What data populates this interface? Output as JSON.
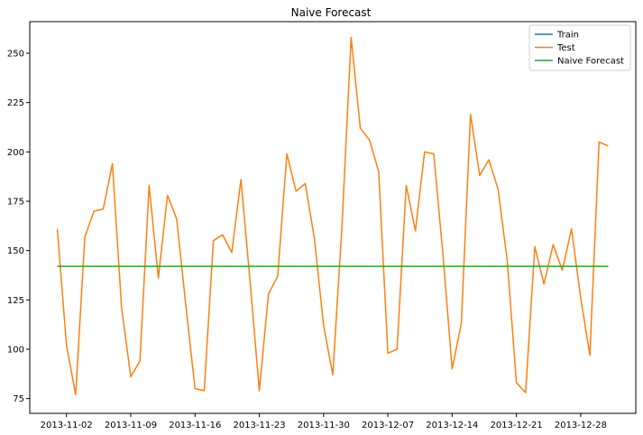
{
  "chart_data": {
    "type": "line",
    "title": "Naive Forecast",
    "xlabel": "",
    "ylabel": "",
    "x_tick_labels": [
      "2013-11-02",
      "2013-11-09",
      "2013-11-16",
      "2013-11-23",
      "2013-11-30",
      "2013-12-07",
      "2013-12-14",
      "2013-12-21",
      "2013-12-28"
    ],
    "y_ticks": [
      75,
      100,
      125,
      150,
      175,
      200,
      225,
      250
    ],
    "xlim": [
      "2013-10-29",
      "2014-01-03"
    ],
    "ylim": [
      67.5,
      266
    ],
    "grid": false,
    "legend_position": "top-right",
    "legend": [
      "Train",
      "Test",
      "Naive Forecast"
    ],
    "x_start": "2013-11-01",
    "series": [
      {
        "name": "Train",
        "color": "#1f77b4",
        "values": []
      },
      {
        "name": "Test",
        "color": "#ff7f0e",
        "values": [
          161,
          102,
          77,
          157,
          170,
          171,
          194,
          121,
          86,
          94,
          183,
          136,
          178,
          166,
          122,
          80,
          79,
          155,
          158,
          149,
          186,
          134,
          79,
          128,
          137,
          199,
          180,
          184,
          156,
          112,
          87,
          162,
          258,
          212,
          206,
          190,
          98,
          100,
          183,
          160,
          200,
          199,
          148,
          90,
          113,
          219,
          188,
          196,
          181,
          145,
          83,
          78,
          152,
          133,
          153,
          140,
          161,
          126,
          97,
          205,
          203
        ]
      },
      {
        "name": "Naive Forecast",
        "color": "#2ca02c",
        "value": 142,
        "x_range": [
          "2013-11-01",
          "2013-12-31"
        ]
      }
    ]
  }
}
